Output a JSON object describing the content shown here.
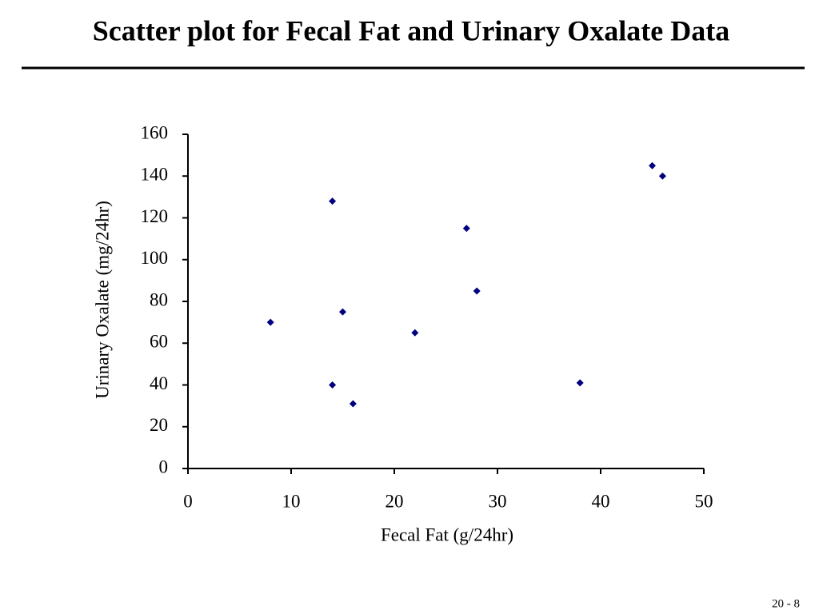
{
  "chart_data": {
    "type": "scatter",
    "title": "Scatter plot for Fecal Fat and Urinary Oxalate Data",
    "x_label": "Fecal Fat (g/24hr)",
    "y_label": "Urinary Oxalate (mg/24hr)",
    "x": [
      8,
      14,
      14,
      15,
      16,
      22,
      27,
      28,
      38,
      45,
      46
    ],
    "values": [
      70,
      128,
      40,
      75,
      31,
      65,
      115,
      85,
      41,
      145,
      140
    ],
    "color": "#000080",
    "xlim": [
      0,
      50
    ],
    "xticks": [
      0,
      10,
      20,
      30,
      40,
      50
    ],
    "ylim": [
      0,
      160
    ],
    "yticks": [
      0,
      20,
      40,
      60,
      80,
      100,
      120,
      140,
      160
    ],
    "grid": false
  },
  "footer": "20 - 8"
}
